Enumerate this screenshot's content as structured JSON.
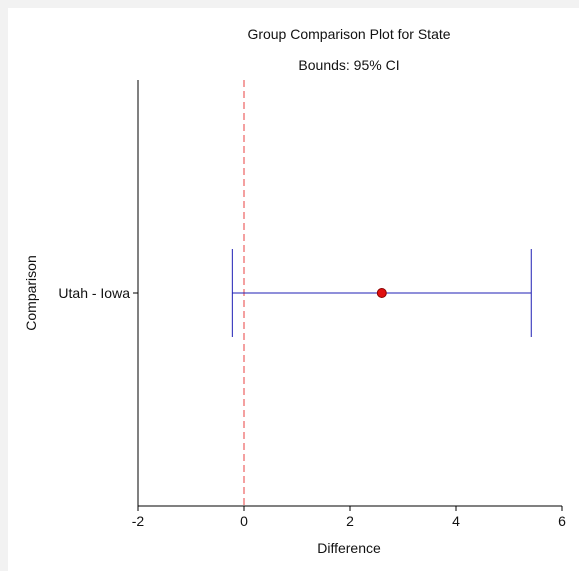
{
  "chart_data": {
    "type": "interval",
    "title": "Group Comparison Plot for State",
    "subtitle": "Bounds: 95% CI",
    "xlabel": "Difference",
    "ylabel": "Comparison",
    "xlim": [
      -2,
      6
    ],
    "x_ticks": [
      -2,
      0,
      2,
      4,
      6
    ],
    "reference_line": 0,
    "comparisons": [
      {
        "label": "Utah - Iowa",
        "estimate": 2.6,
        "lower": -0.22,
        "upper": 5.42
      }
    ],
    "grid": false,
    "colors": {
      "interval": "#1f1fb4",
      "point_fill": "#e01010",
      "point_stroke": "#8a0000",
      "reference": "#f08080",
      "axis": "#000000"
    }
  }
}
